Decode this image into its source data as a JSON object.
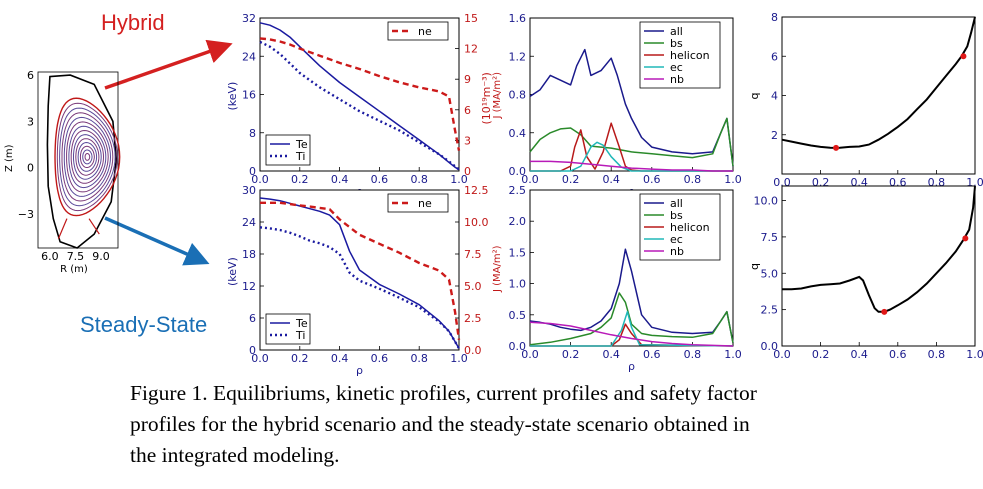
{
  "labels": {
    "hybrid": "Hybrid",
    "steady": "Steady-State",
    "hybrid_color": "#d42020",
    "steady_color": "#1a6fb5"
  },
  "caption": {
    "line1": "Figure 1. Equilibriums, kinetic profiles, current profiles and safety factor",
    "line2": "profiles for the hybrid scenario and the steady-state scenario obtained in",
    "line3": "the integrated modeling."
  },
  "chart_data": [
    {
      "id": "equilibrium",
      "type": "line",
      "title": "",
      "xlabel": "R (m)",
      "ylabel": "Z (m)",
      "xticks": [
        "6.0",
        "7.5",
        "9.0"
      ],
      "yticks": [
        "6",
        "3",
        "0",
        "−3"
      ],
      "xlim": [
        5.3,
        10.0
      ],
      "ylim": [
        -5.2,
        6.2
      ],
      "magnetic_axis": [
        8.2,
        0.7
      ],
      "n_surfaces": 14
    },
    {
      "id": "kinetic-hybrid",
      "type": "line",
      "xlabel": "ρ",
      "ylabel": "(keV)",
      "ylabel_right": "(10¹⁹m⁻³)",
      "xlim": [
        0,
        1
      ],
      "ylim": [
        0,
        32
      ],
      "ylim_right": [
        0,
        15
      ],
      "xticks": [
        "0.0",
        "0.2",
        "0.4",
        "0.6",
        "0.8",
        "1.0"
      ],
      "yticks": [
        "0",
        "8",
        "16",
        "24",
        "32"
      ],
      "yticks_right": [
        "0",
        "3",
        "6",
        "9",
        "12",
        "15"
      ],
      "legend": [
        "Te",
        "Ti"
      ],
      "legend_right": [
        "ne"
      ],
      "series": [
        {
          "name": "Te",
          "axis": "left",
          "color": "#1a1aa0",
          "dash": "",
          "x": [
            0,
            0.05,
            0.1,
            0.15,
            0.2,
            0.3,
            0.4,
            0.5,
            0.6,
            0.7,
            0.8,
            0.9,
            0.95,
            0.98,
            1.0
          ],
          "y": [
            31,
            30.5,
            29.5,
            28,
            26,
            22,
            18.5,
            15.5,
            12.5,
            9.5,
            6.5,
            3.5,
            1.8,
            0.8,
            0.3
          ]
        },
        {
          "name": "Ti",
          "axis": "left",
          "color": "#1a1aa0",
          "dash": "2 3",
          "x": [
            0,
            0.05,
            0.1,
            0.15,
            0.2,
            0.3,
            0.4,
            0.5,
            0.6,
            0.7,
            0.8,
            0.9,
            0.95,
            0.98,
            1.0
          ],
          "y": [
            27,
            26,
            24.5,
            22.5,
            20.5,
            17.5,
            15,
            12.5,
            10.5,
            8.5,
            6,
            3.5,
            2,
            1,
            0.3
          ]
        },
        {
          "name": "ne",
          "axis": "right",
          "color": "#cc1a1a",
          "dash": "6 4",
          "x": [
            0,
            0.05,
            0.1,
            0.15,
            0.2,
            0.3,
            0.4,
            0.5,
            0.6,
            0.7,
            0.8,
            0.9,
            0.95,
            0.98,
            1.0
          ],
          "y": [
            13,
            12.9,
            12.7,
            12.4,
            12,
            11.3,
            10.6,
            10,
            9.3,
            8.7,
            8.2,
            7.8,
            7.3,
            4,
            2
          ]
        }
      ]
    },
    {
      "id": "kinetic-steady",
      "type": "line",
      "xlabel": "ρ",
      "ylabel": "(keV)",
      "ylabel_right": "",
      "xlim": [
        0,
        1
      ],
      "ylim": [
        0,
        30
      ],
      "ylim_right": [
        0,
        12.5
      ],
      "xticks": [
        "0.0",
        "0.2",
        "0.4",
        "0.6",
        "0.8",
        "1.0"
      ],
      "yticks": [
        "0",
        "6",
        "12",
        "18",
        "24",
        "30"
      ],
      "yticks_right": [
        "0.0",
        "2.5",
        "5.0",
        "7.5",
        "10.0",
        "12.5"
      ],
      "legend": [
        "Te",
        "Ti"
      ],
      "legend_right": [
        "ne"
      ],
      "series": [
        {
          "name": "Te",
          "axis": "left",
          "color": "#1a1aa0",
          "dash": "",
          "x": [
            0,
            0.05,
            0.1,
            0.15,
            0.2,
            0.25,
            0.3,
            0.35,
            0.4,
            0.45,
            0.5,
            0.6,
            0.7,
            0.8,
            0.9,
            0.95,
            1.0
          ],
          "y": [
            28.5,
            28.3,
            28,
            27.5,
            27,
            26.5,
            26,
            25.3,
            23.5,
            18.5,
            15,
            12.3,
            10.5,
            8.5,
            5.5,
            3.5,
            0.3
          ]
        },
        {
          "name": "Ti",
          "axis": "left",
          "color": "#1a1aa0",
          "dash": "2 3",
          "x": [
            0,
            0.05,
            0.1,
            0.15,
            0.2,
            0.25,
            0.3,
            0.35,
            0.4,
            0.45,
            0.5,
            0.6,
            0.7,
            0.8,
            0.9,
            0.95,
            1.0
          ],
          "y": [
            23,
            22.8,
            22.5,
            22,
            21.3,
            20.5,
            20,
            19.3,
            18,
            14.5,
            13,
            11.5,
            9.8,
            8,
            5.3,
            3.5,
            0.3
          ]
        },
        {
          "name": "ne",
          "axis": "right",
          "color": "#cc1a1a",
          "dash": "6 4",
          "x": [
            0,
            0.05,
            0.1,
            0.15,
            0.2,
            0.25,
            0.3,
            0.35,
            0.4,
            0.5,
            0.6,
            0.7,
            0.8,
            0.9,
            0.95,
            0.98,
            1.0
          ],
          "y": [
            11.5,
            11.5,
            11.5,
            11.4,
            11.3,
            11.2,
            11.1,
            11,
            10.2,
            9,
            8.3,
            7.6,
            6.8,
            6.2,
            5.5,
            3,
            0.8
          ]
        }
      ]
    },
    {
      "id": "current-hybrid",
      "type": "line",
      "xlabel": "ρ",
      "ylabel": "J (MA/m²)",
      "xlim": [
        0,
        1
      ],
      "ylim": [
        0,
        1.6
      ],
      "xticks": [
        "0.0",
        "0.2",
        "0.4",
        "0.6",
        "0.8",
        "1.0"
      ],
      "yticks": [
        "0.0",
        "0.4",
        "0.8",
        "1.2",
        "1.6"
      ],
      "legend": [
        "all",
        "bs",
        "helicon",
        "ec",
        "nb"
      ],
      "series": [
        {
          "name": "all",
          "color": "#1a1a8c",
          "x": [
            0,
            0.05,
            0.1,
            0.15,
            0.2,
            0.23,
            0.27,
            0.3,
            0.35,
            0.4,
            0.43,
            0.47,
            0.5,
            0.55,
            0.6,
            0.7,
            0.8,
            0.9,
            0.94,
            0.97,
            1.0
          ],
          "y": [
            0.78,
            0.85,
            1.0,
            0.95,
            0.9,
            1.1,
            1.27,
            1.0,
            1.05,
            1.18,
            1.0,
            0.7,
            0.55,
            0.35,
            0.25,
            0.2,
            0.18,
            0.2,
            0.4,
            0.55,
            0.05
          ]
        },
        {
          "name": "bs",
          "color": "#2a8a2a",
          "x": [
            0,
            0.05,
            0.1,
            0.15,
            0.2,
            0.25,
            0.3,
            0.35,
            0.4,
            0.5,
            0.6,
            0.7,
            0.8,
            0.9,
            0.94,
            0.97,
            1.0
          ],
          "y": [
            0.2,
            0.33,
            0.4,
            0.44,
            0.45,
            0.38,
            0.26,
            0.25,
            0.24,
            0.2,
            0.18,
            0.16,
            0.14,
            0.18,
            0.4,
            0.55,
            0.05
          ]
        },
        {
          "name": "helicon",
          "color": "#b81a1a",
          "x": [
            0,
            0.15,
            0.2,
            0.22,
            0.25,
            0.28,
            0.32,
            0.36,
            0.4,
            0.44,
            0.47,
            0.5,
            0.55,
            1.0
          ],
          "y": [
            0,
            0,
            0.05,
            0.25,
            0.43,
            0.15,
            0.02,
            0.2,
            0.5,
            0.25,
            0.05,
            0.01,
            0,
            0
          ]
        },
        {
          "name": "ec",
          "color": "#20b8b8",
          "x": [
            0,
            0.2,
            0.25,
            0.3,
            0.33,
            0.36,
            0.4,
            0.45,
            0.5,
            1.0
          ],
          "y": [
            0,
            0,
            0.05,
            0.25,
            0.3,
            0.27,
            0.15,
            0.04,
            0,
            0
          ]
        },
        {
          "name": "nb",
          "color": "#b81ab8",
          "x": [
            0,
            0.1,
            0.2,
            0.3,
            0.4,
            0.5,
            0.6,
            0.7,
            0.8,
            0.9,
            1.0
          ],
          "y": [
            0.1,
            0.1,
            0.09,
            0.07,
            0.05,
            0.03,
            0.02,
            0.01,
            0.01,
            0,
            0
          ]
        }
      ]
    },
    {
      "id": "current-steady",
      "type": "line",
      "xlabel": "ρ",
      "ylabel": "J (MA/m²)",
      "xlim": [
        0,
        1
      ],
      "ylim": [
        0,
        2.5
      ],
      "xticks": [
        "0.0",
        "0.2",
        "0.4",
        "0.6",
        "0.8",
        "1.0"
      ],
      "yticks": [
        "0.0",
        "0.5",
        "1.0",
        "1.5",
        "2.0",
        "2.5"
      ],
      "legend": [
        "all",
        "bs",
        "helicon",
        "ec",
        "nb"
      ],
      "series": [
        {
          "name": "all",
          "color": "#1a1a8c",
          "x": [
            0,
            0.05,
            0.1,
            0.15,
            0.2,
            0.25,
            0.3,
            0.35,
            0.4,
            0.44,
            0.47,
            0.5,
            0.55,
            0.6,
            0.7,
            0.8,
            0.9,
            0.94,
            0.97,
            1.0
          ],
          "y": [
            0.4,
            0.38,
            0.35,
            0.3,
            0.27,
            0.25,
            0.3,
            0.4,
            0.6,
            1.0,
            1.55,
            1.2,
            0.5,
            0.3,
            0.22,
            0.2,
            0.22,
            0.4,
            0.55,
            0.05
          ]
        },
        {
          "name": "bs",
          "color": "#2a8a2a",
          "x": [
            0,
            0.1,
            0.2,
            0.3,
            0.35,
            0.4,
            0.44,
            0.47,
            0.5,
            0.55,
            0.6,
            0.7,
            0.8,
            0.9,
            0.94,
            0.97,
            1.0
          ],
          "y": [
            0.02,
            0.06,
            0.12,
            0.2,
            0.3,
            0.45,
            0.85,
            0.7,
            0.35,
            0.2,
            0.17,
            0.15,
            0.14,
            0.2,
            0.4,
            0.55,
            0.05
          ]
        },
        {
          "name": "helicon",
          "color": "#b81a1a",
          "x": [
            0,
            0.4,
            0.44,
            0.47,
            0.5,
            0.55,
            1.0
          ],
          "y": [
            0,
            0,
            0.1,
            0.35,
            0.2,
            0.02,
            0
          ]
        },
        {
          "name": "ec",
          "color": "#20b8b8",
          "x": [
            0,
            0.4,
            0.45,
            0.48,
            0.5,
            0.54,
            1.0
          ],
          "y": [
            0,
            0,
            0.25,
            0.55,
            0.3,
            0.02,
            0
          ]
        },
        {
          "name": "nb",
          "color": "#b81ab8",
          "x": [
            0,
            0.1,
            0.2,
            0.3,
            0.4,
            0.5,
            0.6,
            0.7,
            0.8,
            1.0
          ],
          "y": [
            0.38,
            0.36,
            0.32,
            0.25,
            0.18,
            0.12,
            0.07,
            0.04,
            0.02,
            0
          ]
        }
      ]
    },
    {
      "id": "q-hybrid",
      "type": "line",
      "xlabel": "",
      "ylabel": "q",
      "xlim": [
        0,
        1
      ],
      "ylim": [
        0,
        8
      ],
      "xticks": [
        "0.0",
        "0.2",
        "0.4",
        "0.6",
        "0.8",
        "1.0"
      ],
      "yticks": [
        "2",
        "4",
        "6",
        "8"
      ],
      "series": [
        {
          "name": "q",
          "color": "#000000",
          "x": [
            0,
            0.05,
            0.1,
            0.15,
            0.2,
            0.25,
            0.28,
            0.3,
            0.35,
            0.4,
            0.45,
            0.5,
            0.55,
            0.6,
            0.65,
            0.7,
            0.75,
            0.8,
            0.85,
            0.9,
            0.93,
            0.96,
            0.98,
            1.0
          ],
          "y": [
            1.75,
            1.65,
            1.55,
            1.45,
            1.38,
            1.34,
            1.33,
            1.34,
            1.38,
            1.4,
            1.5,
            1.75,
            2.05,
            2.4,
            2.8,
            3.3,
            3.8,
            4.4,
            5.0,
            5.6,
            6.0,
            6.5,
            7.2,
            8.0
          ]
        }
      ],
      "markers": [
        {
          "x": 0.28,
          "y": 1.33
        },
        {
          "x": 0.94,
          "y": 6.0
        }
      ]
    },
    {
      "id": "q-steady",
      "type": "line",
      "xlabel": "",
      "ylabel": "q",
      "xlim": [
        0,
        1
      ],
      "ylim": [
        0,
        11
      ],
      "xticks": [
        "0.0",
        "0.2",
        "0.4",
        "0.6",
        "0.8",
        "1.0"
      ],
      "yticks": [
        "0.0",
        "2.5",
        "5.0",
        "7.5",
        "10.0"
      ],
      "series": [
        {
          "name": "q",
          "color": "#000000",
          "x": [
            0,
            0.05,
            0.1,
            0.15,
            0.2,
            0.25,
            0.3,
            0.35,
            0.4,
            0.42,
            0.45,
            0.48,
            0.5,
            0.53,
            0.56,
            0.6,
            0.65,
            0.7,
            0.75,
            0.8,
            0.85,
            0.9,
            0.94,
            0.97,
            0.99,
            1.0
          ],
          "y": [
            3.9,
            3.9,
            3.95,
            4.1,
            4.2,
            4.25,
            4.3,
            4.5,
            4.75,
            4.5,
            3.5,
            2.6,
            2.35,
            2.35,
            2.5,
            2.8,
            3.2,
            3.7,
            4.3,
            5.0,
            5.7,
            6.5,
            7.3,
            8.0,
            9.5,
            11.0
          ]
        }
      ],
      "markers": [
        {
          "x": 0.53,
          "y": 2.35
        },
        {
          "x": 0.95,
          "y": 7.4
        }
      ]
    }
  ]
}
